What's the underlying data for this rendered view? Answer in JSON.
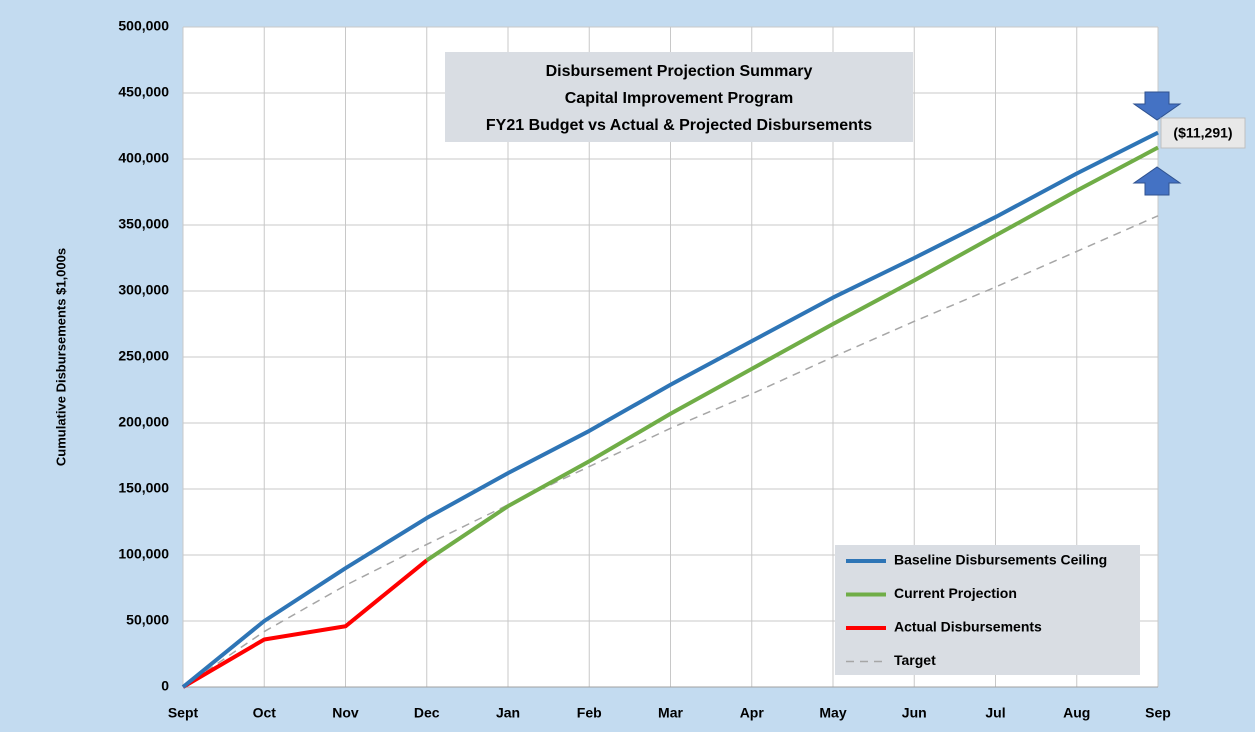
{
  "chart_data": {
    "type": "line",
    "title": [
      "Disbursement Projection Summary",
      "Capital Improvement Program",
      "FY21 Budget vs Actual & Projected Disbursements"
    ],
    "y_label": "Cumulative Disbursements $1,000s",
    "categories": [
      "Sept",
      "Oct",
      "Nov",
      "Dec",
      "Jan",
      "Feb",
      "Mar",
      "Apr",
      "May",
      "Jun",
      "Jul",
      "Aug",
      "Sep"
    ],
    "series": [
      {
        "name": "Baseline Disbursements Ceiling",
        "color": "#2e75b6",
        "values": [
          0,
          50000,
          90000,
          128000,
          162000,
          194000,
          229000,
          262000,
          295000,
          325000,
          356000,
          389000,
          420000
        ]
      },
      {
        "name": "Current Projection",
        "color": "#70ad47",
        "values": [
          null,
          null,
          null,
          96000,
          137000,
          171000,
          207000,
          241000,
          275000,
          308000,
          342000,
          376000,
          408700
        ]
      },
      {
        "name": "Actual Disbursements",
        "color": "#ff0000",
        "values": [
          0,
          36000,
          46000,
          96000,
          null,
          null,
          null,
          null,
          null,
          null,
          null,
          null,
          null
        ]
      },
      {
        "name": "Target",
        "color": "#a6a6a6",
        "dashed": true,
        "values": [
          0,
          42000,
          77000,
          108000,
          138000,
          167000,
          196000,
          222000,
          250000,
          277000,
          303000,
          330000,
          357000
        ]
      }
    ],
    "annotation": "($11,291)",
    "ylim": [
      0,
      500000
    ],
    "yticks": [
      0,
      {
        "value": 50000,
        "label": "50,000"
      },
      {
        "value": 100000,
        "label": "100,000"
      },
      {
        "value": 150000,
        "label": "150,000"
      },
      {
        "value": 200000,
        "label": "200,000"
      },
      {
        "value": 250000,
        "label": "250,000"
      },
      {
        "value": 300000,
        "label": "300,000"
      },
      {
        "value": 350000,
        "label": "350,000"
      },
      {
        "value": 400000,
        "label": "400,000"
      },
      {
        "value": 450000,
        "label": "450,000"
      },
      {
        "value": 500000,
        "label": "500,000"
      }
    ],
    "grid": true,
    "legend": "lower right"
  }
}
